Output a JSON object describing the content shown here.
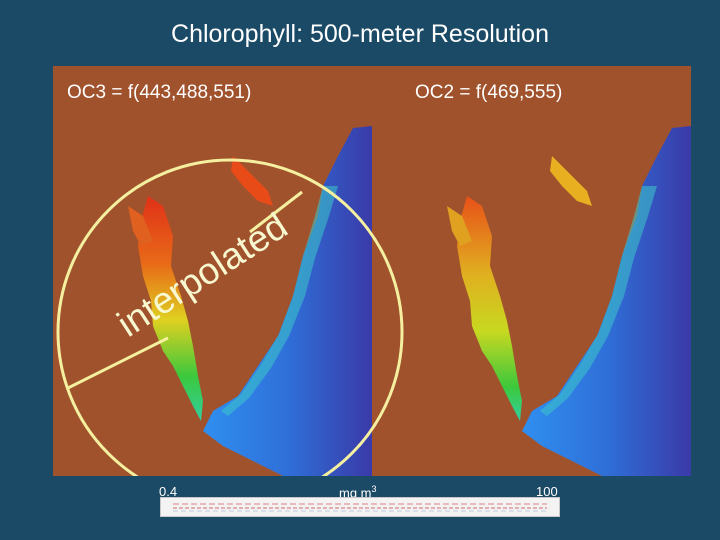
{
  "title": "Chlorophyll: 500-meter Resolution",
  "panels": [
    {
      "label": "OC3 = f(443,488,551)"
    },
    {
      "label": "OC2 = f(469,555)"
    }
  ],
  "annotation": {
    "text": "interpolated"
  },
  "scale": {
    "min": "0.4",
    "unit": "mg m",
    "unit_exp": "3",
    "max": "100"
  },
  "colors": {
    "background": "#1b4a66",
    "land": "#a0522d",
    "ocean_deep": "#3a3aa8",
    "ocean": "#2f7fe0",
    "bay_green": "#3cc83c",
    "bay_yellow": "#e0d020",
    "bay_red": "#e03018",
    "annotation": "#f5f0a0"
  }
}
